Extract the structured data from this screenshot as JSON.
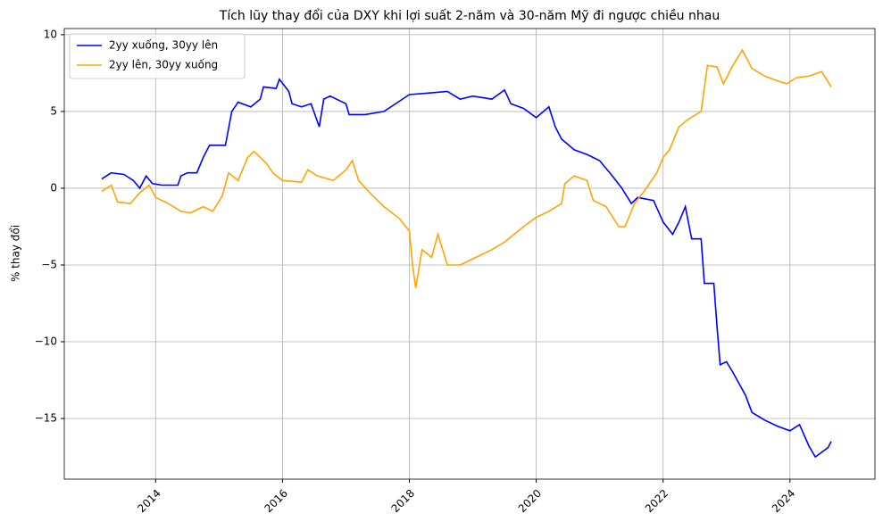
{
  "chart_data": {
    "type": "line",
    "title": "Tích lũy thay đổi của DXY khi lợi suất 2-năm và 30-năm Mỹ đi ngược chiều nhau",
    "y_label": "% thay đổi",
    "xlim": [
      2012.56,
      2025.34
    ],
    "xticks": [
      2014,
      2016,
      2018,
      2020,
      2022,
      2024
    ],
    "ylim": [
      -18.95,
      10.4
    ],
    "yticks": [
      {
        "value": -15,
        "label": "−15"
      },
      {
        "value": -10,
        "label": "−10"
      },
      {
        "value": -5,
        "label": "−5"
      },
      0,
      5,
      10
    ],
    "grid": true,
    "legend": "upper-left",
    "series": [
      {
        "name": "2yy xuống, 30yy lên",
        "color": "#0000ff",
        "x": [
          2013.15,
          2013.3,
          2013.5,
          2013.65,
          2013.75,
          2013.85,
          2013.95,
          2014.1,
          2014.35,
          2014.4,
          2014.5,
          2014.65,
          2014.75,
          2014.85,
          2015.1,
          2015.2,
          2015.3,
          2015.5,
          2015.65,
          2015.7,
          2015.9,
          2015.95,
          2016.1,
          2016.15,
          2016.3,
          2016.45,
          2016.58,
          2016.65,
          2016.75,
          2017.0,
          2017.05,
          2017.3,
          2017.6,
          2018.0,
          2018.3,
          2018.6,
          2018.8,
          2019.0,
          2019.3,
          2019.5,
          2019.6,
          2019.8,
          2020.0,
          2020.2,
          2020.3,
          2020.4,
          2020.6,
          2020.8,
          2021.0,
          2021.2,
          2021.35,
          2021.5,
          2021.6,
          2021.85,
          2022.0,
          2022.15,
          2022.25,
          2022.35,
          2022.45,
          2022.6,
          2022.65,
          2022.8,
          2022.85,
          2022.9,
          2023.0,
          2023.1,
          2023.3,
          2023.4,
          2023.6,
          2023.8,
          2024.0,
          2024.15,
          2024.3,
          2024.4,
          2024.6,
          2024.65
        ],
        "values": [
          0.6,
          1.0,
          0.9,
          0.5,
          0.0,
          0.8,
          0.3,
          0.2,
          0.2,
          0.8,
          1.0,
          1.0,
          2.0,
          2.8,
          2.8,
          5.0,
          5.6,
          5.3,
          5.8,
          6.6,
          6.5,
          7.1,
          6.3,
          5.5,
          5.3,
          5.5,
          4.0,
          5.8,
          6.0,
          5.5,
          4.8,
          4.8,
          5.0,
          6.1,
          6.2,
          6.3,
          5.8,
          6.0,
          5.8,
          6.4,
          5.5,
          5.2,
          4.6,
          5.3,
          4.0,
          3.2,
          2.5,
          2.2,
          1.8,
          0.8,
          0.0,
          -1.0,
          -0.6,
          -0.8,
          -2.2,
          -3.0,
          -2.2,
          -1.2,
          -3.3,
          -3.3,
          -6.2,
          -6.2,
          -9.0,
          -11.5,
          -11.3,
          -12.0,
          -13.5,
          -14.6,
          -15.1,
          -15.5,
          -15.8,
          -15.4,
          -16.8,
          -17.5,
          -16.9,
          -16.5
        ]
      },
      {
        "name": "2yy lên, 30yy xuống",
        "color": "#ffa500",
        "x": [
          2013.15,
          2013.3,
          2013.4,
          2013.6,
          2013.75,
          2013.9,
          2014.0,
          2014.2,
          2014.4,
          2014.55,
          2014.75,
          2014.9,
          2015.05,
          2015.15,
          2015.3,
          2015.45,
          2015.55,
          2015.75,
          2015.85,
          2016.0,
          2016.3,
          2016.4,
          2016.55,
          2016.8,
          2017.0,
          2017.1,
          2017.2,
          2017.4,
          2017.6,
          2017.85,
          2018.0,
          2018.05,
          2018.1,
          2018.2,
          2018.35,
          2018.45,
          2018.6,
          2018.8,
          2019.0,
          2019.3,
          2019.5,
          2019.8,
          2020.0,
          2020.2,
          2020.4,
          2020.45,
          2020.6,
          2020.8,
          2020.9,
          2021.1,
          2021.3,
          2021.4,
          2021.55,
          2021.7,
          2021.9,
          2022.0,
          2022.1,
          2022.25,
          2022.4,
          2022.6,
          2022.7,
          2022.85,
          2022.95,
          2023.1,
          2023.25,
          2023.4,
          2023.6,
          2023.8,
          2023.95,
          2024.1,
          2024.3,
          2024.5,
          2024.65
        ],
        "values": [
          -0.2,
          0.2,
          -0.9,
          -1.0,
          -0.3,
          0.2,
          -0.6,
          -1.0,
          -1.5,
          -1.6,
          -1.2,
          -1.5,
          -0.5,
          1.0,
          0.5,
          2.0,
          2.4,
          1.6,
          1.0,
          0.5,
          0.4,
          1.2,
          0.8,
          0.5,
          1.2,
          1.8,
          0.5,
          -0.4,
          -1.2,
          -2.0,
          -2.8,
          -5.0,
          -6.5,
          -4.0,
          -4.5,
          -3.0,
          -5.0,
          -5.0,
          -4.6,
          -4.0,
          -3.5,
          -2.5,
          -1.9,
          -1.5,
          -1.0,
          0.3,
          0.8,
          0.5,
          -0.8,
          -1.2,
          -2.5,
          -2.5,
          -1.0,
          -0.2,
          1.0,
          2.0,
          2.5,
          4.0,
          4.5,
          5.0,
          8.0,
          7.9,
          6.8,
          8.0,
          9.0,
          7.8,
          7.3,
          7.0,
          6.8,
          7.2,
          7.3,
          7.6,
          6.6
        ]
      }
    ]
  }
}
